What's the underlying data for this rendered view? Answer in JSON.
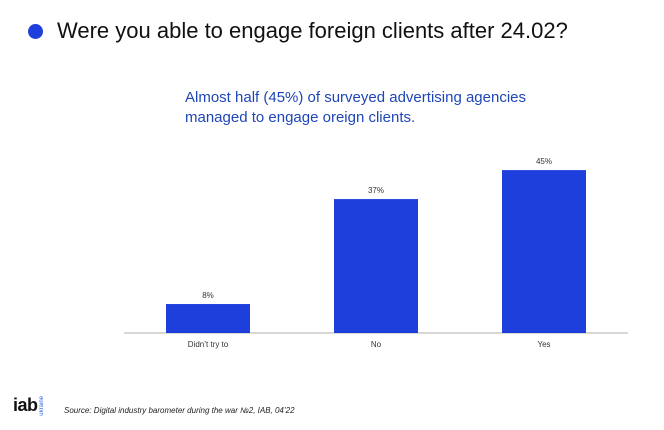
{
  "header": {
    "title": "Were you able to engage foreign clients after 24.02?"
  },
  "annotation": {
    "line1": "Almost half (45%) of surveyed advertising agencies",
    "line2": "managed to engage oreign clients."
  },
  "colors": {
    "bar": "#1f3fdc",
    "bullet": "#1f3fdc",
    "subtitle": "#1f46b8",
    "axis": "#b0b0b0"
  },
  "chart_data": {
    "type": "bar",
    "title": "Were you able to engage foreign clients after 24.02?",
    "categories": [
      "Didn’t try to",
      "No",
      "Yes"
    ],
    "values": [
      8,
      37,
      45
    ],
    "value_labels": [
      "8%",
      "37%",
      "45%"
    ],
    "xlabel": "",
    "ylabel": "",
    "ylim": [
      0,
      50
    ],
    "grid": false,
    "legend": "none"
  },
  "footer": {
    "logo": "iab",
    "logo_sub": "ukraine",
    "source": "Source: Digital industry barometer during the war №2, IAB, 04’22"
  }
}
